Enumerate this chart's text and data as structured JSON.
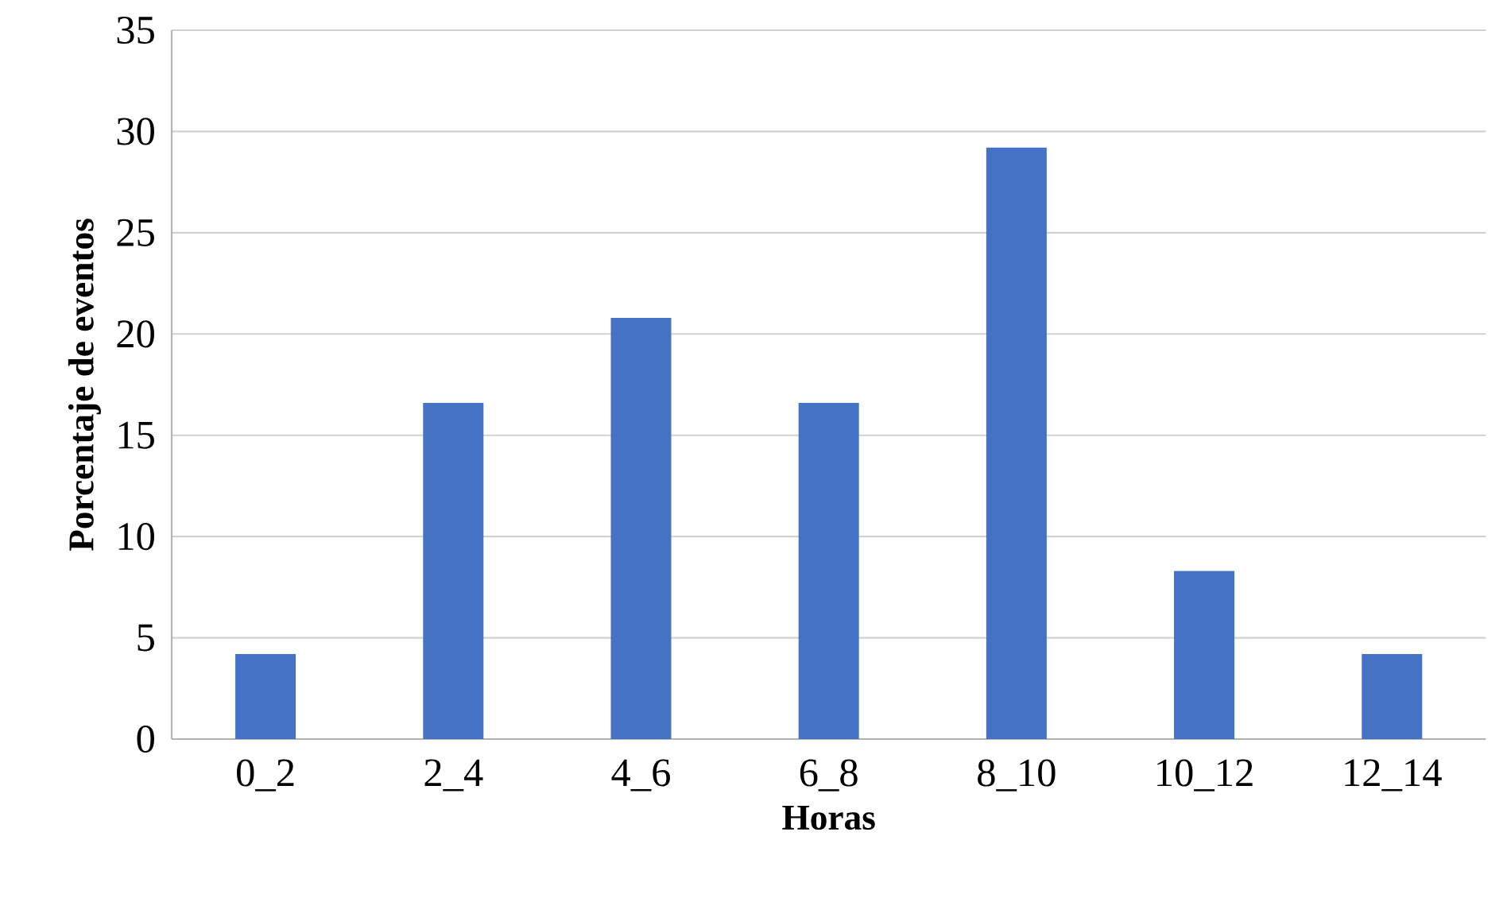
{
  "chart_data": {
    "type": "bar",
    "xlabel": "Horas",
    "ylabel": "Porcentaje de eventos",
    "categories": [
      "0_2",
      "2_4",
      "4_6",
      "6_8",
      "8_10",
      "10_12",
      "12_14"
    ],
    "values": [
      4.2,
      16.6,
      20.8,
      16.6,
      29.2,
      8.3,
      4.2
    ],
    "color": "#4472c4",
    "ylim": [
      0,
      35
    ],
    "yticks": [
      0,
      5,
      10,
      15,
      20,
      25,
      30,
      35
    ],
    "grid": "y"
  }
}
